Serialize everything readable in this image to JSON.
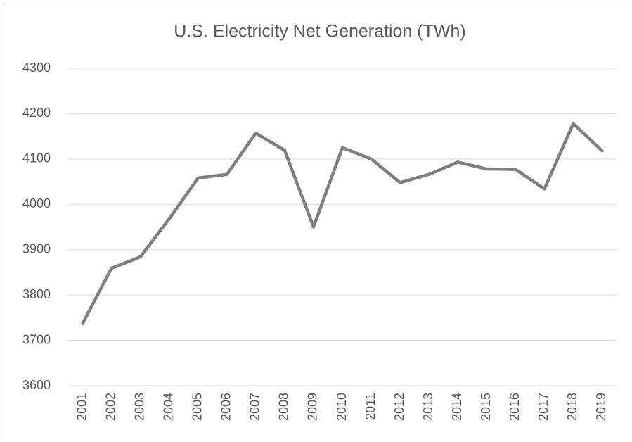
{
  "chart_data": {
    "type": "line",
    "title": "U.S. Electricity Net Generation (TWh)",
    "categories": [
      "2001",
      "2002",
      "2003",
      "2004",
      "2005",
      "2006",
      "2007",
      "2008",
      "2009",
      "2010",
      "2011",
      "2012",
      "2013",
      "2014",
      "2015",
      "2016",
      "2017",
      "2018",
      "2019"
    ],
    "values": [
      3737,
      3859,
      3884,
      3968,
      4058,
      4066,
      4157,
      4119,
      3950,
      4125,
      4100,
      4048,
      4066,
      4093,
      4078,
      4077,
      4034,
      4178,
      4118
    ],
    "color": "#7f7f7f",
    "ylim": [
      3600,
      4300
    ],
    "yticks": [
      3600,
      3700,
      3800,
      3900,
      4000,
      4100,
      4200,
      4300
    ],
    "grid": true
  }
}
